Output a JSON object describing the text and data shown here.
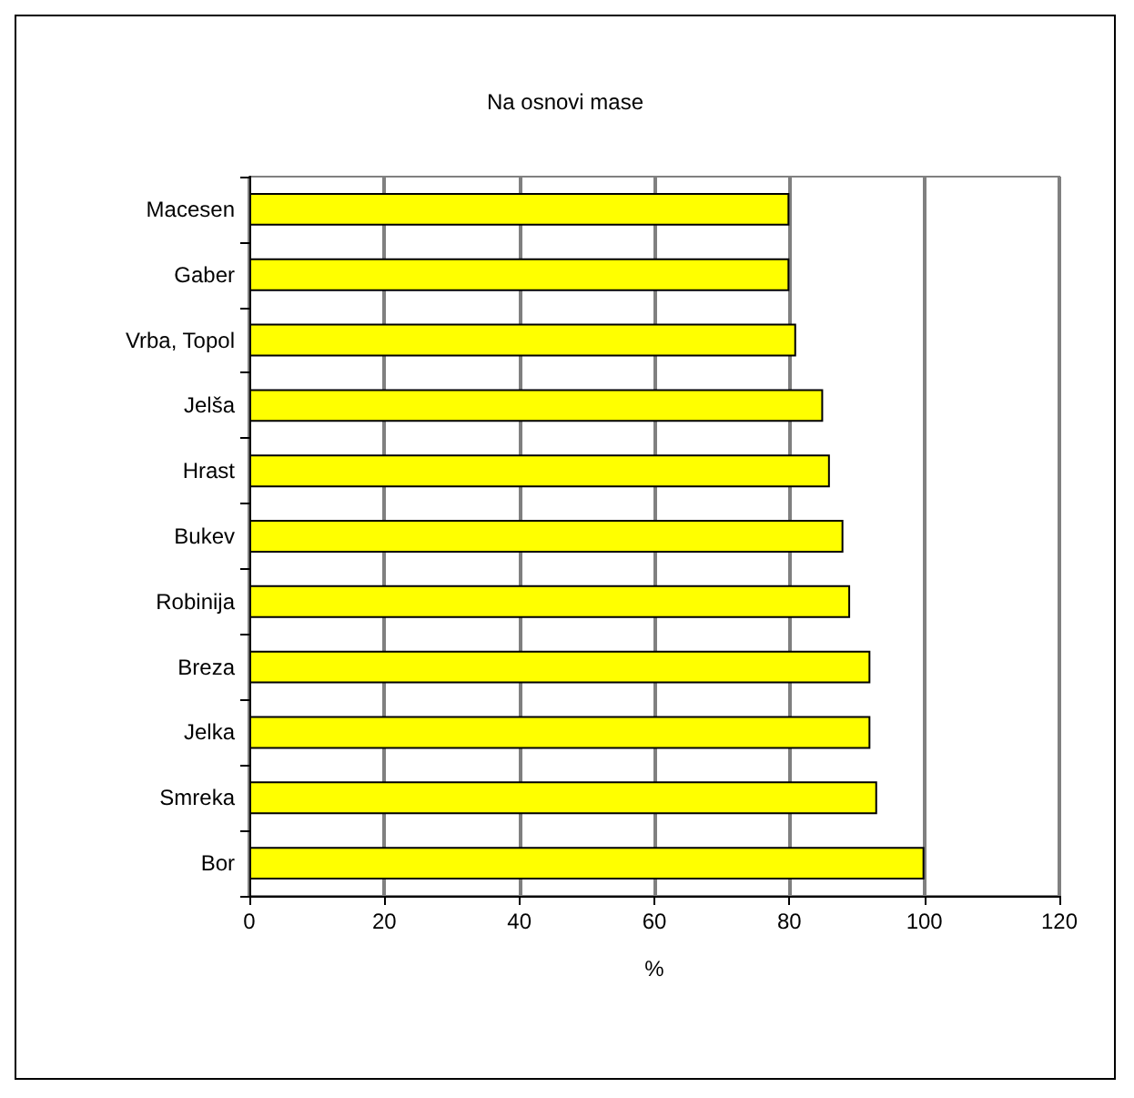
{
  "chart_data": {
    "type": "bar",
    "orientation": "horizontal",
    "title": "Na osnovi mase",
    "xlabel": "%",
    "categories": [
      "Macesen",
      "Gaber",
      "Vrba, Topol",
      "Jelša",
      "Hrast",
      "Bukev",
      "Robinija",
      "Breza",
      "Jelka",
      "Smreka",
      "Bor"
    ],
    "values": [
      80,
      80,
      81,
      85,
      86,
      88,
      89,
      92,
      92,
      93,
      100
    ],
    "color": "#ffff00",
    "xlim": [
      0,
      120
    ],
    "xticks": [
      0,
      20,
      40,
      60,
      80,
      100,
      120
    ],
    "grid": "x"
  }
}
